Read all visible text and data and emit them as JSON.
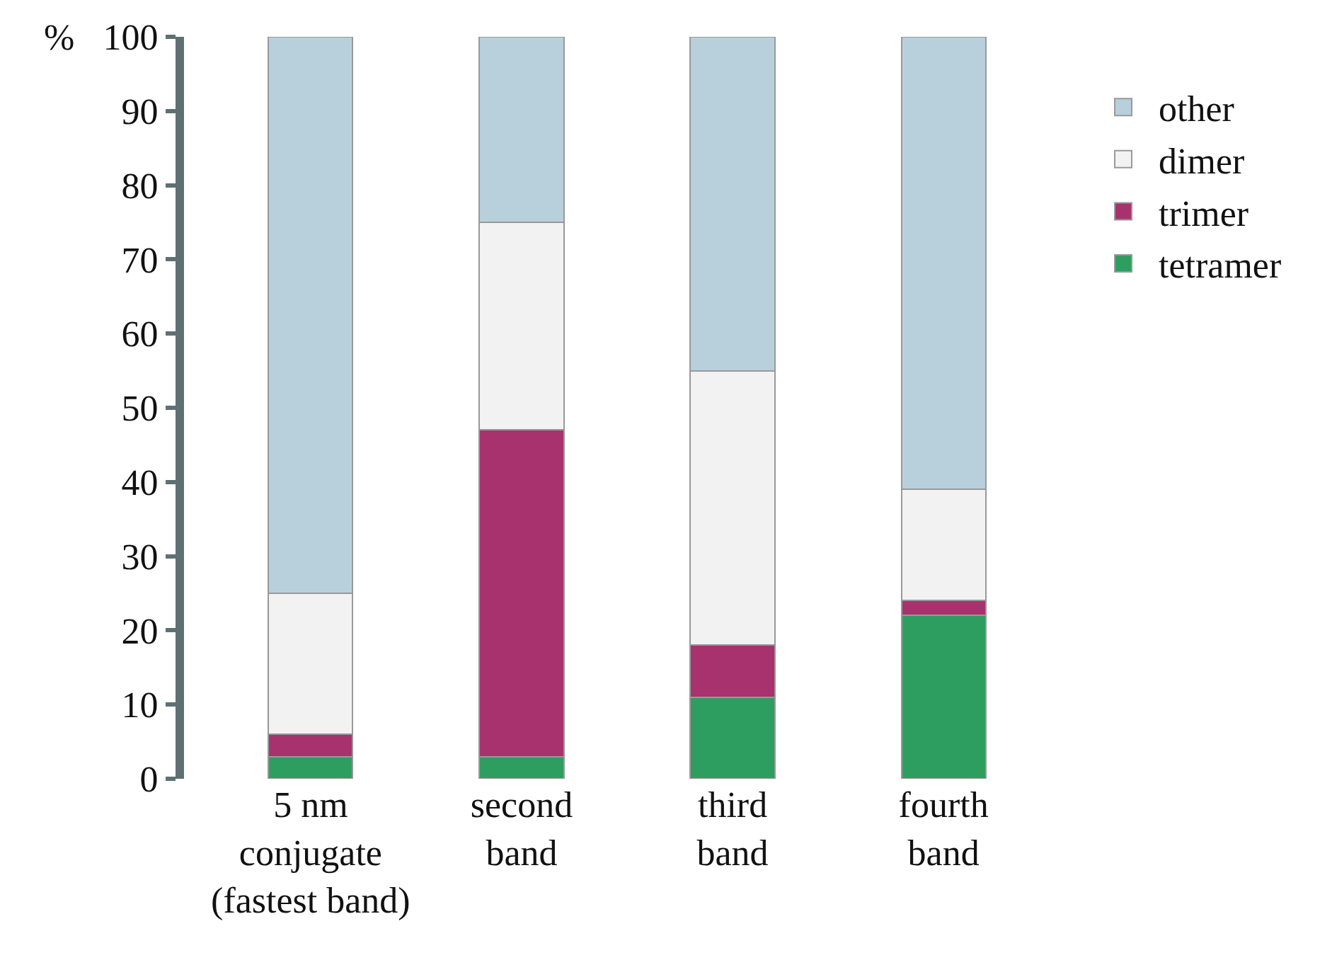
{
  "chart_data": {
    "type": "bar",
    "stacked": true,
    "ylabel": "%",
    "categories": [
      "5 nm\nconjugate\n(fastest band)",
      "second\nband",
      "third\nband",
      "fourth\nband"
    ],
    "series": [
      {
        "name": "tetramer",
        "color": "#2e9e60",
        "values": [
          3,
          3,
          11,
          22
        ]
      },
      {
        "name": "trimer",
        "color": "#a8326e",
        "values": [
          3,
          44,
          7,
          2
        ]
      },
      {
        "name": "dimer",
        "color": "#f2f2f2",
        "values": [
          19,
          28,
          37,
          15
        ]
      },
      {
        "name": "other",
        "color": "#b8d0dc",
        "values": [
          75,
          25,
          45,
          61
        ]
      }
    ],
    "ylim": [
      0,
      100
    ],
    "yticks": [
      0,
      10,
      20,
      30,
      40,
      50,
      60,
      70,
      80,
      90,
      100
    ],
    "grid": false,
    "legend": "top right"
  }
}
